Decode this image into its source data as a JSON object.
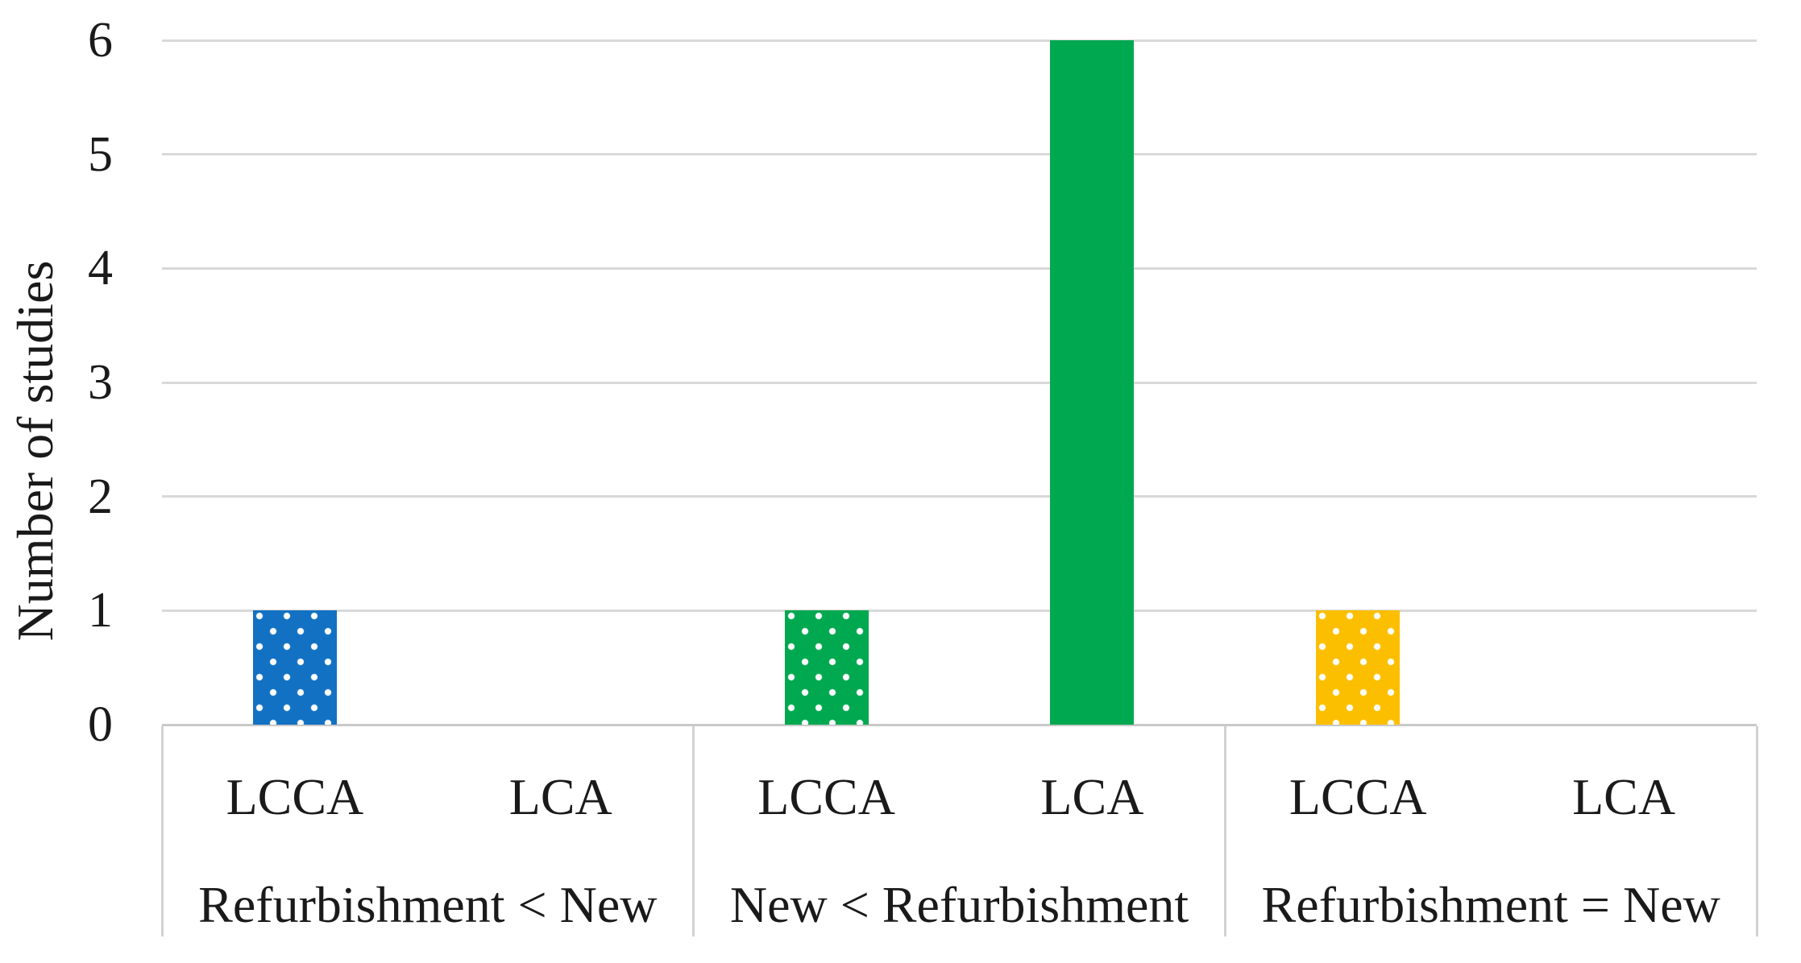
{
  "figure": {
    "background": "#ffffff",
    "text_color": "#1a1a1a",
    "gridline_color": "#d9d9d9",
    "axis_border_color": "#cccccc"
  },
  "chart_data": {
    "type": "bar",
    "title": "",
    "xlabel": "",
    "ylabel": "Number of studies",
    "ylim": [
      0,
      6
    ],
    "yticks": [
      0,
      1,
      2,
      3,
      4,
      5,
      6
    ],
    "grid": true,
    "legend": "none",
    "bar_colors": {
      "blue": "#1271c3",
      "green": "#00a850",
      "gold": "#fcbf00"
    },
    "groups": [
      {
        "label": "Refurbishment < New",
        "bars": [
          {
            "label": "LCCA",
            "value": 1,
            "color": "#1271c3",
            "fill": "dotted"
          },
          {
            "label": "LCA",
            "value": 0,
            "color": "",
            "fill": "none"
          }
        ]
      },
      {
        "label": "New < Refurbishment",
        "bars": [
          {
            "label": "LCCA",
            "value": 1,
            "color": "#00a850",
            "fill": "dotted"
          },
          {
            "label": "LCA",
            "value": 6,
            "color": "#00a850",
            "fill": "solid"
          }
        ]
      },
      {
        "label": "Refurbishment = New",
        "bars": [
          {
            "label": "LCCA",
            "value": 1,
            "color": "#fcbf00",
            "fill": "dotted"
          },
          {
            "label": "LCA",
            "value": 0,
            "color": "",
            "fill": "none"
          }
        ]
      }
    ]
  }
}
